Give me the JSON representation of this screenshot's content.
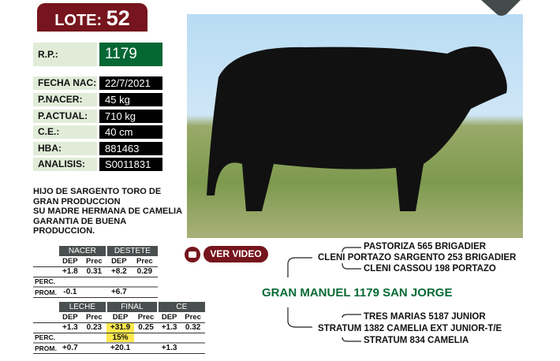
{
  "lote": {
    "label": "LOTE:",
    "number": "52"
  },
  "fields": [
    {
      "label": "R.P.:",
      "value": "1179"
    },
    {
      "label": "FECHA NAC:",
      "value": "22/7/2021"
    },
    {
      "label": "P.NACER:",
      "value": "45 kg"
    },
    {
      "label": "P.ACTUAL:",
      "value": "710 kg"
    },
    {
      "label": "C.E.:",
      "value": "40 cm"
    },
    {
      "label": "HBA:",
      "value": "881463"
    },
    {
      "label": "ANALISIS:",
      "value": "S0011831"
    }
  ],
  "description": [
    "HIJO DE SARGENTO TORO DE",
    "GRAN PRODUCCION",
    "SU MADRE HERMANA DE CAMELIA",
    "GARANTIA DE BUENA",
    "PRODUCCION."
  ],
  "table1": {
    "groups": [
      "NACER",
      "DESTETE"
    ],
    "sub": [
      "DEP",
      "Prec",
      "DEP",
      "Prec"
    ],
    "values": [
      "+1.8",
      "0.31",
      "+8.2",
      "0.29"
    ],
    "perc_label": "PERC.",
    "perc": [
      "",
      "",
      "",
      ""
    ],
    "prom_label": "PROM.",
    "prom": [
      "-0.1",
      "",
      "+6.7",
      ""
    ]
  },
  "table2": {
    "groups": [
      "LECHE",
      "FINAL",
      "CE"
    ],
    "sub": [
      "DEP",
      "Prec",
      "DEP",
      "Prec",
      "DEP",
      "Prec"
    ],
    "values": [
      "+1.3",
      "0.23",
      "+31.9",
      "0.25",
      "+1.3",
      "0.32"
    ],
    "perc_label": "PERC.",
    "perc": [
      "",
      "",
      "15%",
      "",
      "",
      ""
    ],
    "prom_label": "PROM.",
    "prom": [
      "+0.7",
      "",
      "+20.1",
      "",
      "+1.3",
      ""
    ]
  },
  "video": {
    "label": "VER VIDEO",
    "icon": "youtube-icon"
  },
  "pedigree": {
    "name": "GRAN MANUEL 1179 SAN JORGE",
    "sire": "CLENI PORTAZO SARGENTO 253 BRIGADIER",
    "sire_sire": "PASTORIZA 565 BRIGADIER",
    "sire_dam": "CLENI CASSOU 198 PORTAZO",
    "dam": "STRATUM 1382 CAMELIA EXT JUNIOR-T/E",
    "dam_sire": "TRES MARIAS 5187 JUNIOR",
    "dam_dam": "STRATUM 834 CAMELIA"
  },
  "colors": {
    "brand_red": "#76151d",
    "green": "#056734",
    "label_bg": "#e1ecd8",
    "highlight": "#fbe74e"
  }
}
